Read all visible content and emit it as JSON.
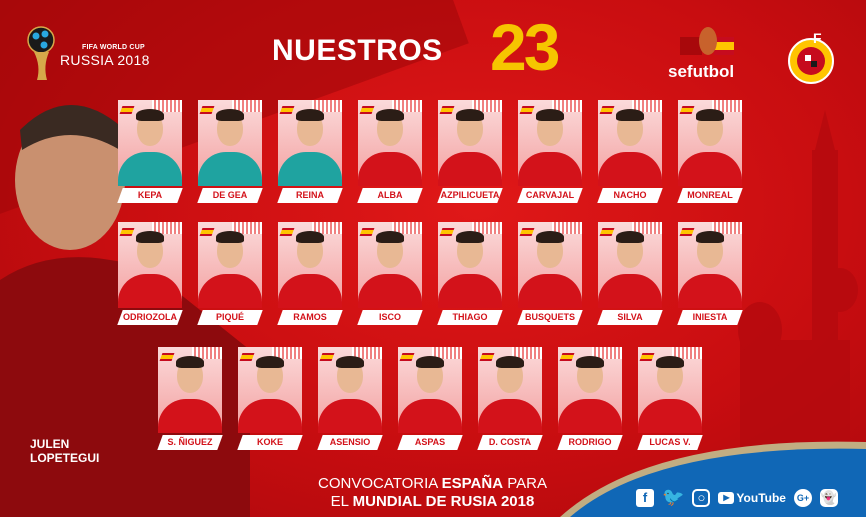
{
  "header": {
    "wc_logo_top": "FIFA WORLD CUP",
    "wc_logo_main": "RUSSIA 2018",
    "title": "NUESTROS",
    "title_number": "23",
    "brand": "sefutbol",
    "federation_logo": "RFEF"
  },
  "coach": {
    "line1": "JULEN",
    "line2": "LOPETEGUI"
  },
  "players": {
    "row1": [
      {
        "name": "KEPA",
        "gk": true
      },
      {
        "name": "DE GEA",
        "gk": true
      },
      {
        "name": "REINA",
        "gk": true
      },
      {
        "name": "ALBA"
      },
      {
        "name": "AZPILICUETA"
      },
      {
        "name": "CARVAJAL"
      },
      {
        "name": "NACHO"
      },
      {
        "name": "MONREAL"
      }
    ],
    "row2": [
      {
        "name": "ODRIOZOLA"
      },
      {
        "name": "PIQUÉ"
      },
      {
        "name": "RAMOS"
      },
      {
        "name": "ISCO"
      },
      {
        "name": "THIAGO"
      },
      {
        "name": "BUSQUETS"
      },
      {
        "name": "SILVA"
      },
      {
        "name": "INIESTA"
      }
    ],
    "row3": [
      {
        "name": "S. ÑIGUEZ"
      },
      {
        "name": "KOKE"
      },
      {
        "name": "ASENSIO"
      },
      {
        "name": "ASPAS"
      },
      {
        "name": "D. COSTA"
      },
      {
        "name": "RODRIGO"
      },
      {
        "name": "LUCAS V."
      }
    ]
  },
  "footer": {
    "line1_a": "CONVOCATORIA ",
    "line1_b": "ESPAÑA",
    "line1_c": " PARA",
    "line2_a": "EL ",
    "line2_b": "MUNDIAL DE RUSIA 2018",
    "social": [
      "facebook-icon",
      "twitter-icon",
      "instagram-icon",
      "youtube-icon",
      "google-plus-icon",
      "snapchat-icon"
    ],
    "youtube_label": "YouTube"
  },
  "colors": {
    "red": "#d3121a",
    "gold": "#f6c500",
    "blue": "#1067b6",
    "goalkeeper": "#1fa3a0"
  }
}
